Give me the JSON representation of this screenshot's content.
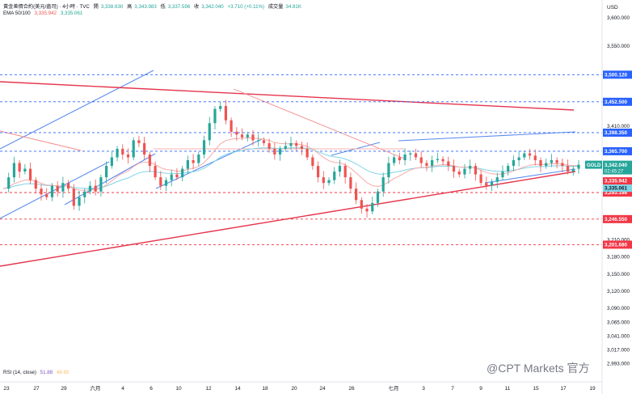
{
  "header": {
    "title": "黃金差價合約(美元/盎司) · 4小時 · TVC",
    "open_label": "開",
    "open_value": "3,338.630",
    "high_label": "高",
    "high_value": "3,343.983",
    "low_label": "低",
    "low_value": "3,337.596",
    "close_label": "收",
    "close_value": "3,342.040",
    "change": "+3.710 (+0.11%)",
    "volume_label": "成交量",
    "volume_value": "34.81K",
    "ema_label": "EMA 50/100",
    "ema50_value": "3,335.942",
    "ema100_value": "3,335.061"
  },
  "currency": "USD",
  "watermark": "@CPT Markets 官方",
  "rsi": {
    "label": "RSI (14, close)",
    "value1": "51.88",
    "value2": "48.65"
  },
  "colors": {
    "up": "#26a69a",
    "down": "#ef5350",
    "ema50": "#f7a9a8",
    "ema100": "#7fd4e6",
    "channel": "#5b8def",
    "trend_red": "#e5354d",
    "dashed_blue": "#2962ff",
    "dashed_red": "#f23645"
  },
  "chart_data": {
    "type": "candlestick",
    "symbol": "GOLD",
    "timeframe": "4h",
    "ylim": [
      2975,
      3600
    ],
    "y_ticks": [
      "3,600.000",
      "3,550.000",
      "3,500.000",
      "3,452.500",
      "3,410.000",
      "3,365.700",
      "3,342.040",
      "3,335.061",
      "3,293.198",
      "3,246.550",
      "3,210.000",
      "3,180.000",
      "3,150.000",
      "3,120.000",
      "3,090.000",
      "3,065.000",
      "3,041.000",
      "3,017.000",
      "2,993.000"
    ],
    "x_labels": [
      "23",
      "27",
      "29",
      "六月",
      "4",
      "6",
      "10",
      "12",
      "14",
      "18",
      "20",
      "24",
      "26",
      "七月",
      "3",
      "7",
      "9",
      "11",
      "15",
      "17",
      "19"
    ],
    "key_levels": [
      {
        "value": 3500.12,
        "label": "3,500.120",
        "kind": "resistance"
      },
      {
        "value": 3452.5,
        "label": "3,452.500",
        "kind": "resistance"
      },
      {
        "value": 3398.35,
        "label": "3,398.350",
        "kind": "resistance"
      },
      {
        "value": 3365.7,
        "label": "3,365.700",
        "kind": "resistance"
      },
      {
        "value": 3293.198,
        "label": "3,293.198",
        "kind": "support"
      },
      {
        "value": 3246.55,
        "label": "3,246.550",
        "kind": "support"
      },
      {
        "value": 3201.68,
        "label": "3,201.680",
        "kind": "support"
      }
    ],
    "last_price": {
      "label": "GOLD",
      "value": 3342.04,
      "text": "3,342.040",
      "countdown": "02:45:27"
    },
    "ema_tags": [
      {
        "value": 3335.942,
        "text": "3,335.942"
      },
      {
        "value": 3335.061,
        "text": "3,335.061"
      }
    ],
    "close_series": [
      3300,
      3320,
      3345,
      3330,
      3335,
      3315,
      3300,
      3290,
      3285,
      3305,
      3295,
      3310,
      3300,
      3270,
      3285,
      3295,
      3305,
      3295,
      3320,
      3340,
      3355,
      3370,
      3360,
      3355,
      3385,
      3380,
      3360,
      3340,
      3320,
      3305,
      3315,
      3325,
      3320,
      3335,
      3350,
      3345,
      3360,
      3385,
      3415,
      3440,
      3445,
      3420,
      3400,
      3395,
      3390,
      3395,
      3385,
      3385,
      3380,
      3370,
      3360,
      3370,
      3375,
      3380,
      3375,
      3370,
      3355,
      3340,
      3320,
      3310,
      3315,
      3330,
      3340,
      3320,
      3300,
      3280,
      3265,
      3260,
      3275,
      3295,
      3320,
      3345,
      3355,
      3350,
      3360,
      3362,
      3355,
      3345,
      3340,
      3350,
      3352,
      3348,
      3340,
      3330,
      3325,
      3335,
      3340,
      3325,
      3310,
      3305,
      3312,
      3320,
      3330,
      3340,
      3350,
      3355,
      3362,
      3358,
      3350,
      3340,
      3345,
      3350,
      3345,
      3340,
      3330,
      3335,
      3342
    ]
  }
}
